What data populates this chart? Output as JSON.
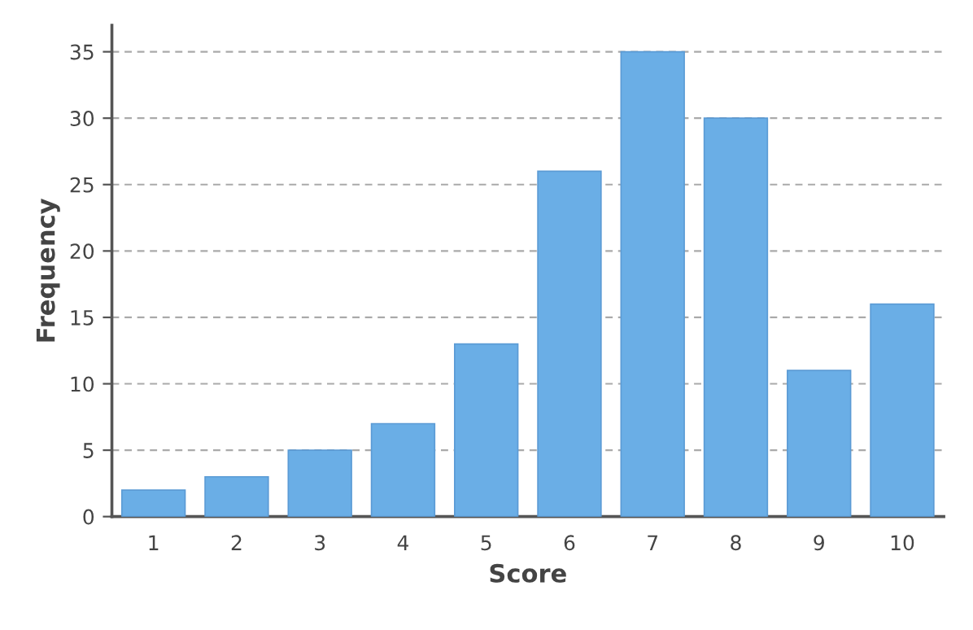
{
  "chart_data": {
    "type": "bar",
    "xlabel": "Score",
    "ylabel": "Frequency",
    "categories": [
      "1",
      "2",
      "3",
      "4",
      "5",
      "6",
      "7",
      "8",
      "9",
      "10"
    ],
    "values": [
      2,
      3,
      5,
      7,
      13,
      26,
      35,
      30,
      11,
      16
    ],
    "color": "#6aaee6",
    "ylim": [
      0,
      37
    ],
    "yticks": [
      0,
      5,
      10,
      15,
      20,
      25,
      30,
      35
    ],
    "grid": "y"
  }
}
